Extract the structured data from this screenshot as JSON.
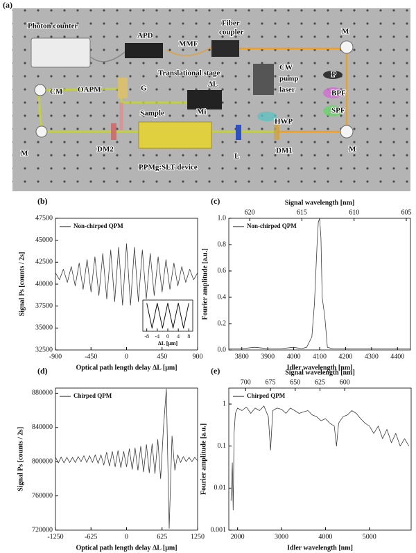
{
  "diagram": {
    "panel_label": "(a)",
    "labels": [
      "Photon counter",
      "APD",
      "MMF",
      "Fiber",
      "coupler",
      "M",
      "CW",
      "pump",
      "laser",
      "P",
      "BPF",
      "SPF",
      "HWP",
      "Translational stage",
      "ΔL",
      "Mi",
      "OAPM",
      "G",
      "Sample",
      "CM",
      "M",
      "DM2",
      "PPMg:SLT device",
      "L",
      "DM1",
      "M"
    ]
  },
  "chart_data": [
    {
      "type": "line",
      "panel_label": "(b)",
      "xlabel": "Optical path length delay ΔL [μm]",
      "ylabel": "Signal Ps [counts / 2s]",
      "xlim": [
        -900,
        900
      ],
      "xticks": [
        -900,
        -450,
        0,
        450,
        900
      ],
      "ylim": [
        32500,
        47500
      ],
      "yticks": [
        32500,
        35000,
        37500,
        40000,
        42500,
        45000,
        47500
      ],
      "x": [
        -900,
        -850,
        -800,
        -750,
        -700,
        -650,
        -600,
        -550,
        -500,
        -450,
        -400,
        -350,
        -300,
        -250,
        -200,
        -150,
        -100,
        -50,
        0,
        50,
        100,
        150,
        200,
        250,
        300,
        350,
        400,
        450,
        500,
        550,
        600,
        650,
        700,
        750,
        800,
        850,
        900
      ],
      "series": [
        {
          "name": "Non-chirped QPM",
          "color": "#3a3a3a",
          "values": [
            41300,
            40500,
            41700,
            40200,
            42000,
            39800,
            42400,
            39400,
            42800,
            39100,
            43100,
            38700,
            43500,
            38300,
            43900,
            38000,
            44200,
            37600,
            44600,
            37600,
            44200,
            38000,
            43900,
            38300,
            43500,
            38700,
            43100,
            39100,
            42800,
            39400,
            42400,
            39800,
            42000,
            40200,
            41700,
            40500,
            41300
          ]
        }
      ]
    },
    {
      "type": "line",
      "inset": true,
      "xlabel": "ΔL [μm]",
      "xlim": [
        -9.5,
        9.5
      ],
      "xticks": [
        -8,
        -4,
        0,
        4,
        8
      ],
      "ylim": [
        0,
        1
      ],
      "x": [
        -8,
        -7,
        -6,
        -5,
        -4,
        -3,
        -2,
        -1,
        0,
        1,
        2,
        3,
        4,
        5,
        6,
        7,
        8
      ],
      "series": [
        {
          "color": "#111111",
          "values": [
            0.9,
            0.5,
            0.1,
            0.5,
            0.9,
            0.5,
            0.1,
            0.5,
            0.9,
            0.5,
            0.1,
            0.5,
            0.9,
            0.5,
            0.1,
            0.5,
            0.9
          ]
        }
      ]
    },
    {
      "type": "line",
      "panel_label": "(c)",
      "xlabel": "Idler wavelength [nm]",
      "ylabel": "Fourier amplitude [a.u.]",
      "x2label": "Signal wavelength [nm]",
      "xlim": [
        3750,
        4450
      ],
      "xticks": [
        3800,
        3900,
        4000,
        4100,
        4200,
        4300,
        4400
      ],
      "x2lim": [
        622,
        604.6
      ],
      "x2ticks": [
        620,
        615,
        610,
        605
      ],
      "ylim": [
        0,
        1
      ],
      "yticks": [
        {
          "value": 0,
          "label": "0.0"
        },
        0.2,
        0.4,
        0.6,
        0.8,
        {
          "value": 1,
          "label": "1.0"
        }
      ],
      "x": [
        3750,
        3800,
        3850,
        3900,
        3950,
        4000,
        4030,
        4050,
        4070,
        4080,
        4090,
        4095,
        4100,
        4105,
        4110,
        4120,
        4130,
        4150,
        4200,
        4250,
        4300,
        4350,
        4400,
        4450
      ],
      "series": [
        {
          "name": "Non-chirped QPM",
          "color": "#3a3a3a",
          "values": [
            0.01,
            0.01,
            0.02,
            0.01,
            0.01,
            0.02,
            0.01,
            0.02,
            0.1,
            0.35,
            0.8,
            0.97,
            1.0,
            0.85,
            0.4,
            0.25,
            0.02,
            0.01,
            0.01,
            0.01,
            0.01,
            0.01,
            0.01,
            0.01
          ]
        }
      ]
    },
    {
      "type": "line",
      "panel_label": "(d)",
      "xlabel": "Optical path length delay ΔL [μm]",
      "ylabel": "Signal Ps [counts / 2s]",
      "xlim": [
        -1250,
        1250
      ],
      "xticks": [
        -1250,
        -625,
        0,
        625,
        1250
      ],
      "ylim": [
        720000,
        886000
      ],
      "yticks": [
        720000,
        760000,
        800000,
        840000,
        880000
      ],
      "x": [
        -1250,
        -1200,
        -1150,
        -1100,
        -1050,
        -1000,
        -950,
        -900,
        -850,
        -800,
        -750,
        -700,
        -650,
        -600,
        -550,
        -500,
        -450,
        -400,
        -350,
        -300,
        -250,
        -200,
        -150,
        -100,
        -50,
        0,
        50,
        100,
        150,
        200,
        250,
        300,
        350,
        400,
        450,
        500,
        550,
        600,
        650,
        700,
        750,
        800,
        850,
        900,
        950,
        1000,
        1050,
        1100,
        1150,
        1200,
        1250
      ],
      "series": [
        {
          "name": "Chirped QPM",
          "color": "#3a3a3a",
          "values": [
            805500,
            798500,
            805500,
            798500,
            805000,
            799000,
            805000,
            799000,
            806000,
            800000,
            807000,
            799000,
            807000,
            799000,
            808000,
            798000,
            808000,
            796000,
            811000,
            795000,
            812000,
            794000,
            813000,
            793000,
            812000,
            794000,
            815000,
            791000,
            816000,
            790000,
            818000,
            788000,
            820000,
            787000,
            821000,
            786000,
            826000,
            780000,
            840000,
            885000,
            722000,
            830000,
            790000,
            808000,
            799000,
            806000,
            800000,
            805000,
            800000,
            805000,
            801000
          ]
        }
      ]
    },
    {
      "type": "line",
      "panel_label": "(e)",
      "xlabel": "Idler wavelength [nm]",
      "ylabel": "Fourier amplitude [a.u.]",
      "x2label": "Signal wavelength [nm]",
      "xlim": [
        1800,
        5950
      ],
      "xticks": [
        2000,
        3000,
        4000,
        5000
      ],
      "x2lim": [
        717,
        533
      ],
      "x2ticks": [
        700,
        675,
        650,
        625,
        600
      ],
      "ylog": true,
      "ylim": [
        0.001,
        2.4
      ],
      "yticks": [
        0.001,
        0.01,
        0.1,
        1
      ],
      "x": [
        1850,
        1880,
        1900,
        1920,
        1950,
        2000,
        2100,
        2200,
        2300,
        2400,
        2500,
        2600,
        2700,
        2750,
        2800,
        2900,
        3000,
        3100,
        3200,
        3300,
        3400,
        3500,
        3600,
        3700,
        3800,
        3900,
        4000,
        4100,
        4200,
        4250,
        4300,
        4400,
        4500,
        4600,
        4700,
        4800,
        4900,
        5000,
        5100,
        5200,
        5300,
        5400,
        5500,
        5600,
        5700,
        5800,
        5900
      ],
      "series": [
        {
          "name": "Chirped QPM",
          "color": "#3a3a3a",
          "values": [
            0.005,
            0.04,
            0.003,
            0.2,
            0.6,
            0.8,
            0.7,
            0.85,
            0.6,
            0.8,
            0.7,
            0.9,
            0.5,
            0.08,
            0.7,
            0.8,
            0.75,
            0.6,
            0.8,
            0.7,
            0.6,
            0.65,
            0.7,
            0.55,
            0.5,
            0.4,
            0.45,
            0.35,
            0.3,
            0.1,
            0.35,
            0.5,
            0.55,
            0.7,
            0.6,
            0.45,
            0.35,
            0.3,
            0.2,
            0.3,
            0.15,
            0.25,
            0.12,
            0.2,
            0.1,
            0.15,
            0.1
          ]
        }
      ]
    }
  ]
}
